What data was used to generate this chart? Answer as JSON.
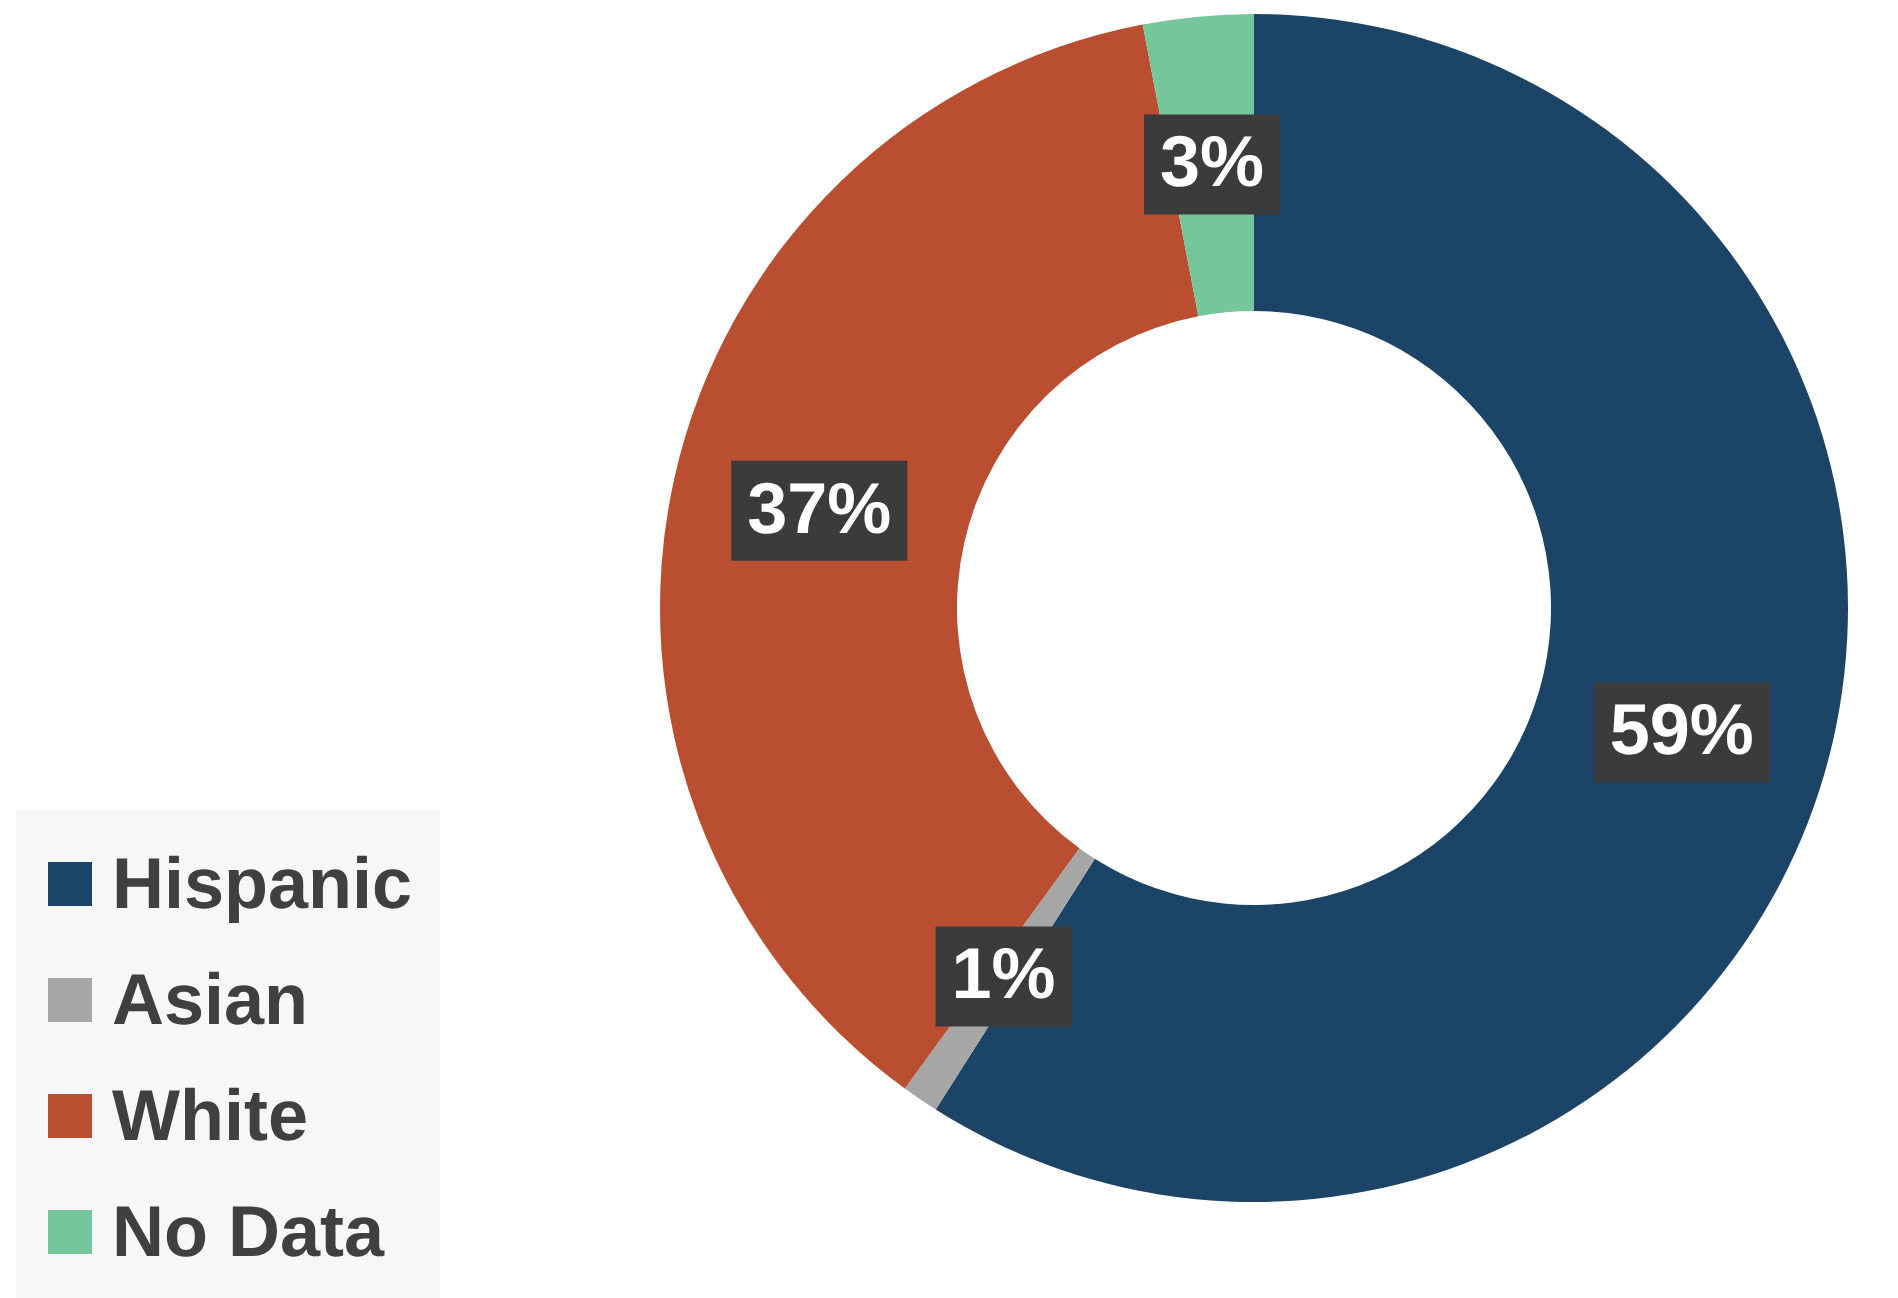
{
  "chart_data": {
    "type": "donut",
    "categories": [
      "Hispanic",
      "Asian",
      "White",
      "No Data"
    ],
    "values": [
      59,
      1,
      37,
      3
    ],
    "colors": [
      "#1c4466",
      "#a6a6a6",
      "#b94e30",
      "#76c69c"
    ],
    "value_labels": [
      "59%",
      "1%",
      "37%",
      "3%"
    ],
    "legend": "bottom left"
  }
}
